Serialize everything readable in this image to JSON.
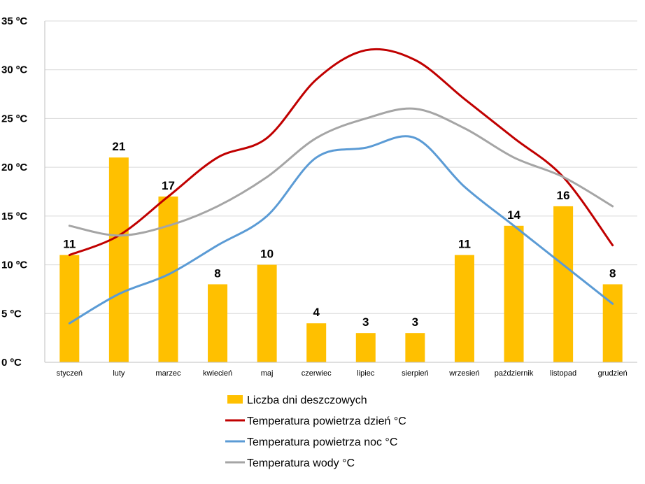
{
  "chart_data": {
    "type": "bar",
    "categories": [
      "styczeń",
      "luty",
      "marzec",
      "kwiecień",
      "maj",
      "czerwiec",
      "lipiec",
      "sierpień",
      "wrzesień",
      "październik",
      "listopad",
      "grudzień"
    ],
    "ylim": [
      0,
      35
    ],
    "yticks": [
      0,
      5,
      10,
      15,
      20,
      25,
      30,
      35
    ],
    "yunit": " ºC",
    "grid": true,
    "legend_position": "bottom",
    "series": [
      {
        "name": "Liczba dni deszczowych",
        "type": "bar",
        "color": "#FFC000",
        "values": [
          11,
          21,
          17,
          8,
          10,
          4,
          3,
          3,
          11,
          14,
          16,
          8
        ]
      },
      {
        "name": "Temperatura powietrza dzień °C",
        "type": "line",
        "color": "#C00000",
        "values": [
          11,
          13,
          17,
          21,
          23,
          29,
          32,
          31,
          27,
          23,
          19,
          12
        ]
      },
      {
        "name": "Temperatura powietrza noc °C",
        "type": "line",
        "color": "#5B9BD5",
        "values": [
          4,
          7,
          9,
          12,
          15,
          21,
          22,
          23,
          18,
          14,
          10,
          6
        ]
      },
      {
        "name": "Temperatura wody °C",
        "type": "line",
        "color": "#A5A5A5",
        "values": [
          14,
          13,
          14,
          16,
          19,
          23,
          25,
          26,
          24,
          21,
          19,
          16
        ]
      }
    ]
  }
}
